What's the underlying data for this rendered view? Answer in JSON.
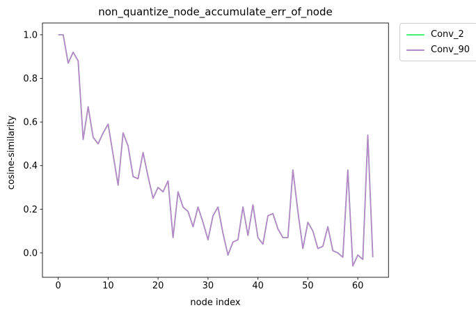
{
  "chart_data": {
    "type": "line",
    "title": "non_quantize_node_accumulate_err_of_node",
    "xlabel": "node index",
    "ylabel": "cosine-similarity",
    "grid": false,
    "legend_position": "upper right, outside axes",
    "xlim": [
      -3.15,
      66.15
    ],
    "ylim": [
      -0.112,
      1.054
    ],
    "x_ticks": [
      0,
      10,
      20,
      30,
      40,
      50,
      60
    ],
    "y_ticks": [
      0.0,
      0.2,
      0.4,
      0.6,
      0.8,
      1.0
    ],
    "x": [
      0,
      1,
      2,
      3,
      4,
      5,
      6,
      7,
      8,
      9,
      10,
      11,
      12,
      13,
      14,
      15,
      16,
      17,
      18,
      19,
      20,
      21,
      22,
      23,
      24,
      25,
      26,
      27,
      28,
      29,
      30,
      31,
      32,
      33,
      34,
      35,
      36,
      37,
      38,
      39,
      40,
      41,
      42,
      43,
      44,
      45,
      46,
      47,
      48,
      49,
      50,
      51,
      52,
      53,
      54,
      55,
      56,
      57,
      58,
      59,
      60,
      61,
      62,
      63
    ],
    "series": [
      {
        "name": "Conv_2",
        "color": "#46f06e",
        "values": [
          1.0,
          1.0,
          0.87,
          0.92,
          0.88,
          0.52,
          0.67,
          0.53,
          0.5,
          0.55,
          0.59,
          0.45,
          0.31,
          0.55,
          0.49,
          0.35,
          0.34,
          0.46,
          0.35,
          0.25,
          0.3,
          0.28,
          0.33,
          0.07,
          0.28,
          0.21,
          0.19,
          0.12,
          0.21,
          0.14,
          0.06,
          0.17,
          0.21,
          0.09,
          -0.01,
          0.05,
          0.06,
          0.21,
          0.08,
          0.22,
          0.07,
          0.04,
          0.17,
          0.18,
          0.11,
          0.07,
          0.07,
          0.38,
          0.19,
          0.02,
          0.14,
          0.1,
          0.02,
          0.03,
          0.12,
          0.01,
          0.0,
          -0.02,
          0.38,
          -0.06,
          -0.01,
          -0.03,
          0.54,
          -0.02
        ]
      },
      {
        "name": "Conv_90",
        "color": "#b886cb",
        "values": [
          1.0,
          1.0,
          0.87,
          0.92,
          0.88,
          0.52,
          0.67,
          0.53,
          0.5,
          0.55,
          0.59,
          0.45,
          0.31,
          0.55,
          0.49,
          0.35,
          0.34,
          0.46,
          0.35,
          0.25,
          0.3,
          0.28,
          0.33,
          0.07,
          0.28,
          0.21,
          0.19,
          0.12,
          0.21,
          0.14,
          0.06,
          0.17,
          0.21,
          0.09,
          -0.01,
          0.05,
          0.06,
          0.21,
          0.08,
          0.22,
          0.07,
          0.04,
          0.17,
          0.18,
          0.11,
          0.07,
          0.07,
          0.38,
          0.19,
          0.02,
          0.14,
          0.1,
          0.02,
          0.03,
          0.12,
          0.01,
          0.0,
          -0.02,
          0.38,
          -0.06,
          -0.01,
          -0.03,
          0.54,
          -0.02
        ]
      }
    ],
    "axis_color": "#222222",
    "note_series_overlap": "Conv_2 is fully hidden beneath Conv_90 (identical values)"
  }
}
